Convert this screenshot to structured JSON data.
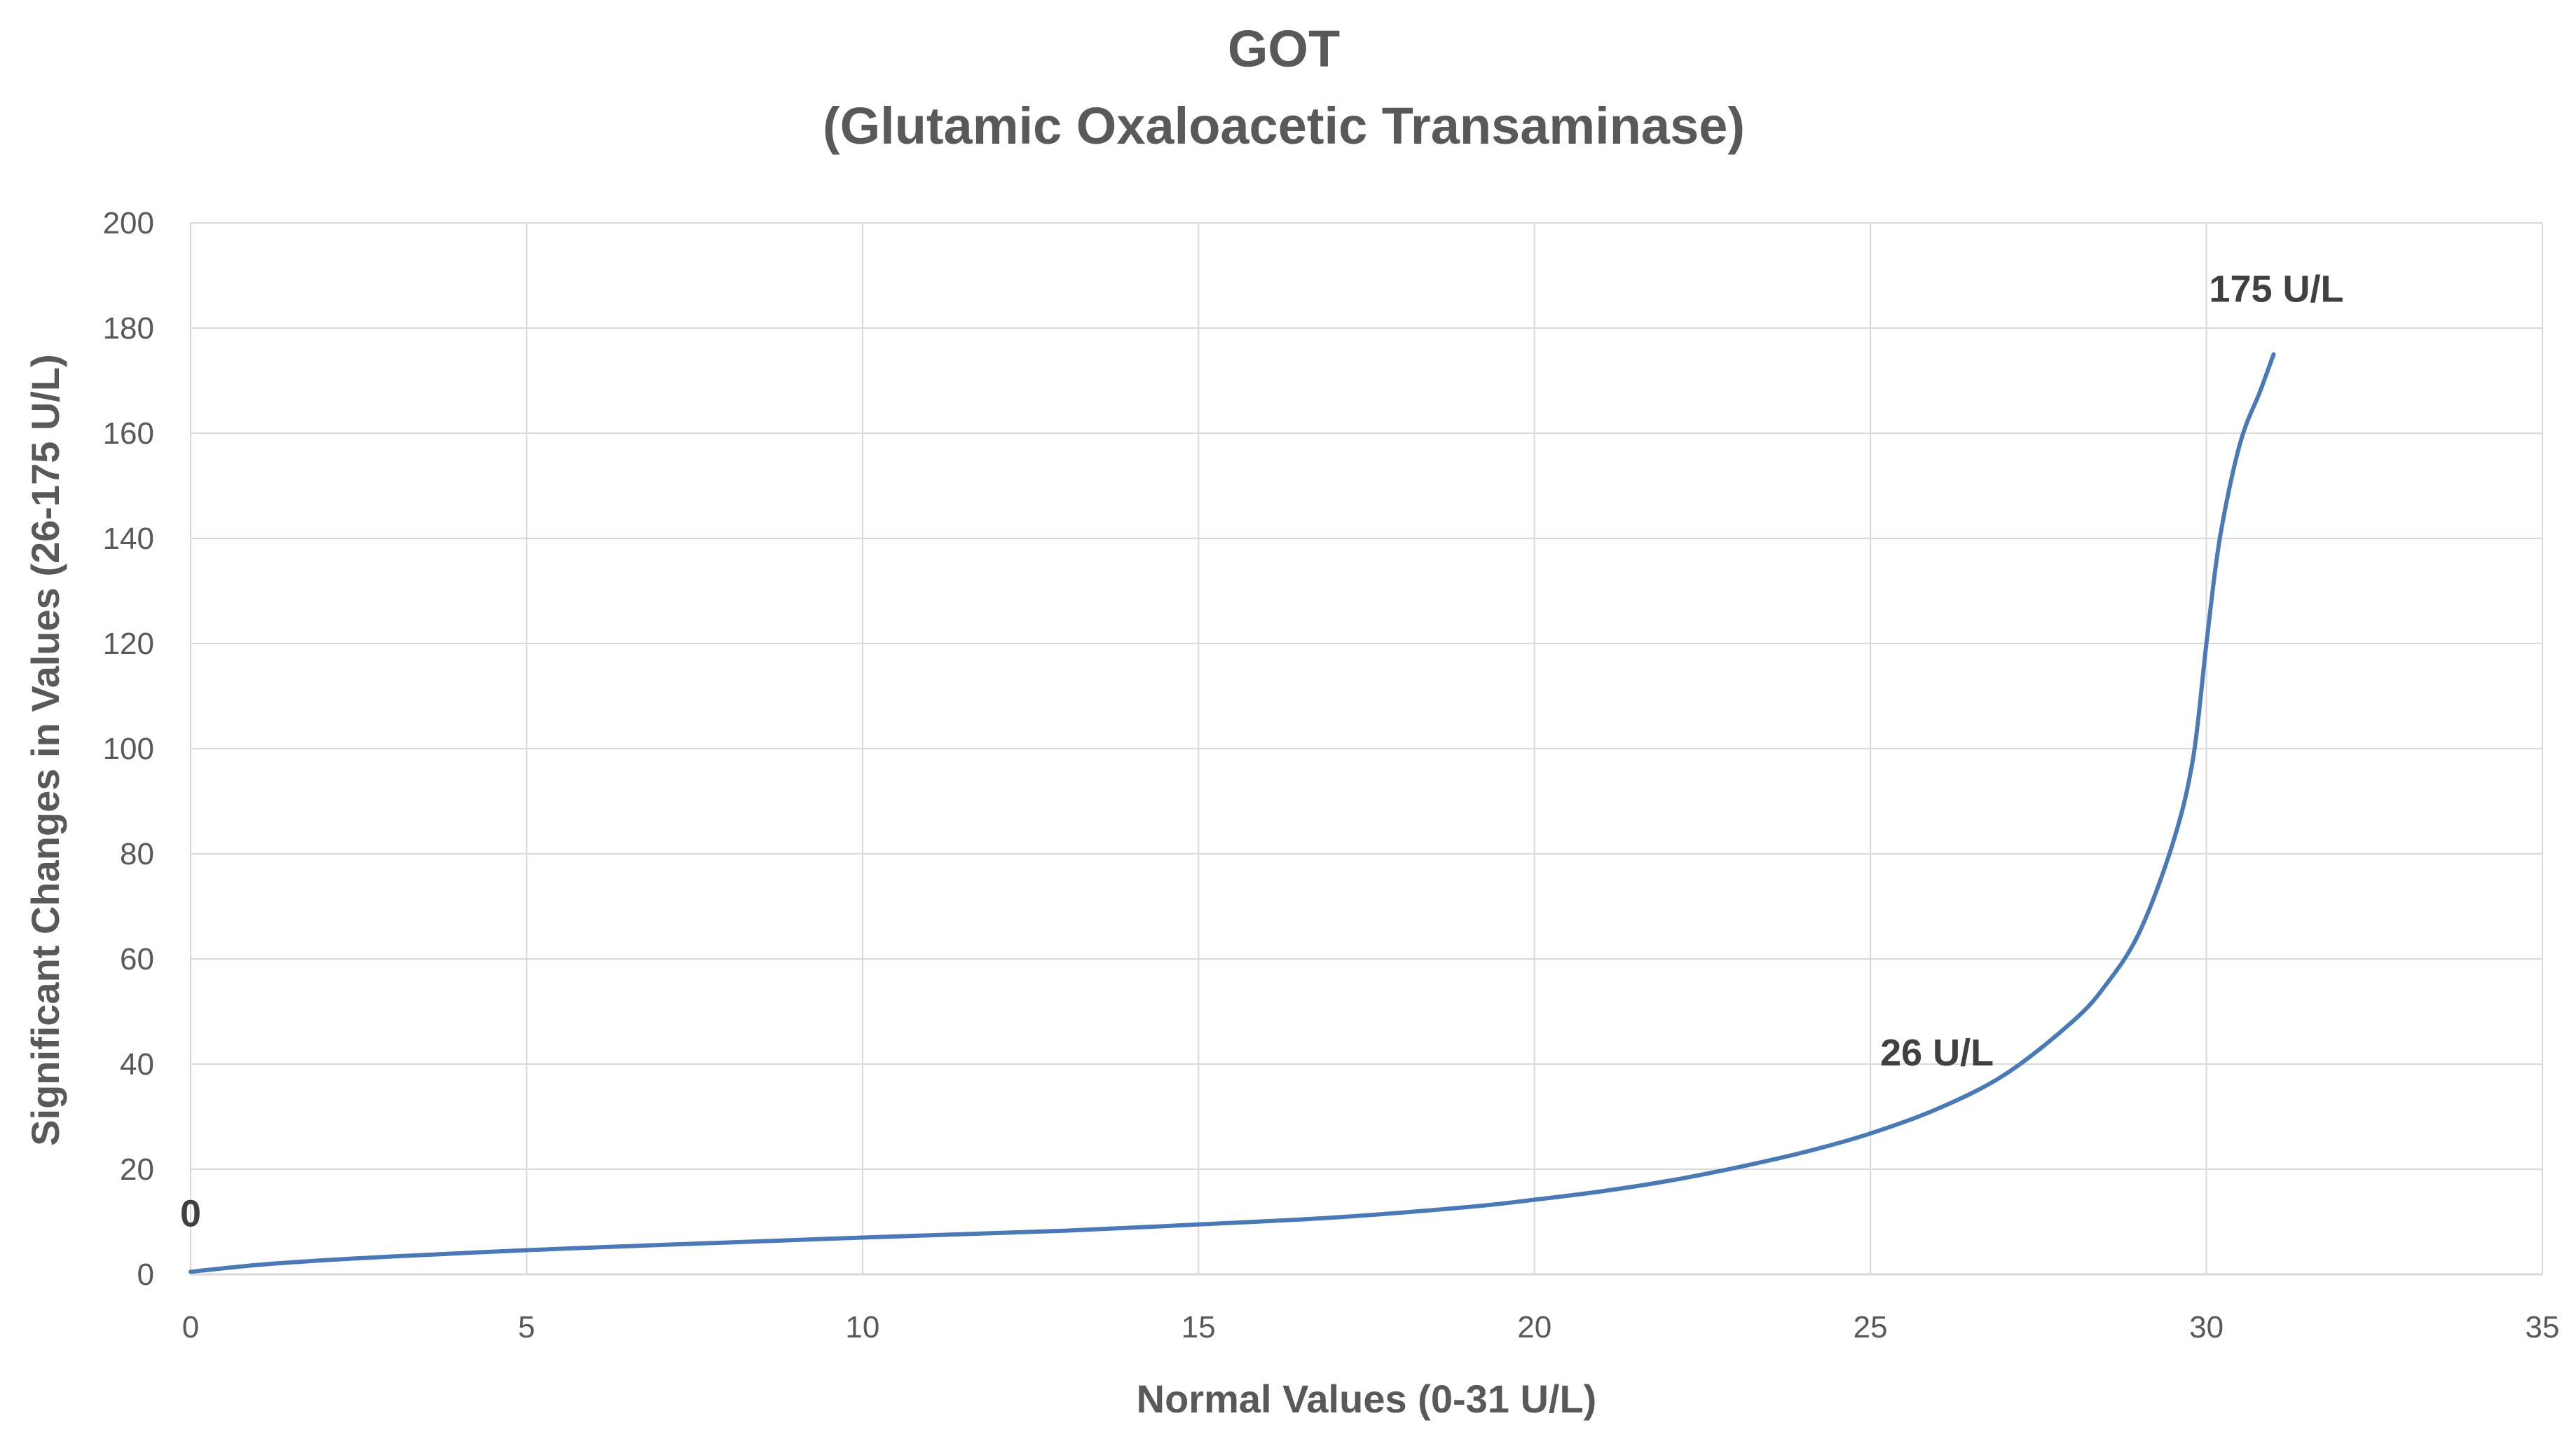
{
  "chart_data": {
    "type": "line",
    "title": "GOT",
    "subtitle": "(Glutamic Oxaloacetic Transaminase)",
    "xlabel": "Normal Values (0-31 U/L)",
    "ylabel": "Significant Changes in Values (26-175 U/L)",
    "xlim": [
      0,
      35
    ],
    "ylim": [
      0,
      200
    ],
    "x_ticks": [
      "0",
      "5",
      "10",
      "15",
      "20",
      "25",
      "30",
      "35"
    ],
    "y_ticks": [
      "0",
      "20",
      "40",
      "60",
      "80",
      "100",
      "120",
      "140",
      "160",
      "180",
      "200"
    ],
    "grid": true,
    "line_color": "#4a7ab5",
    "series": [
      {
        "x": [
          0,
          1,
          2,
          3,
          5,
          7,
          10,
          13,
          15,
          17,
          19,
          20,
          21,
          22,
          23,
          24,
          25,
          26,
          27,
          28,
          28.5,
          29,
          29.5,
          29.8,
          30,
          30.2,
          30.5,
          30.8,
          31
        ],
        "y": [
          0.5,
          1.8,
          2.7,
          3.4,
          4.6,
          5.6,
          7.0,
          8.3,
          9.5,
          10.8,
          12.8,
          14.2,
          15.8,
          17.8,
          20.3,
          23.2,
          26.8,
          31.5,
          38.0,
          48.0,
          55.0,
          65.0,
          82.0,
          98.0,
          120.0,
          140.0,
          158.0,
          168.0,
          175.0
        ]
      }
    ],
    "annotations": [
      {
        "text": "0",
        "x": 0,
        "y": 0.5
      },
      {
        "text": "26 U/L",
        "x": 25,
        "y": 26.8
      },
      {
        "text": "175 U/L",
        "x": 31,
        "y": 175
      }
    ]
  }
}
